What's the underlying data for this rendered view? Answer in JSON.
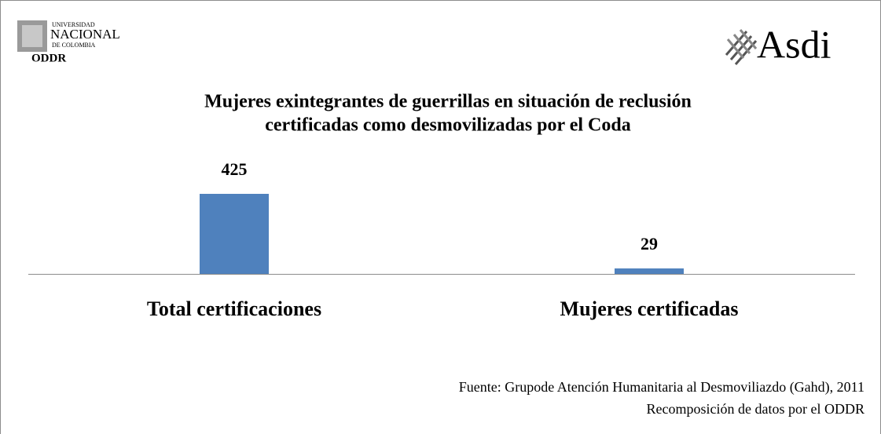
{
  "header": {
    "logo_left": [
      "UNIVERSIDAD",
      "NACIONAL",
      "DE COLOMBIA",
      "ODDR"
    ],
    "logo_right": "Asdi"
  },
  "chart_data": {
    "type": "bar",
    "title": [
      "Mujeres exintegrantes de guerrillas en situación de reclusión",
      "certificadas como desmovilizadas por el Coda"
    ],
    "categories": [
      "Total certificaciones",
      "Mujeres certificadas"
    ],
    "values": [
      425,
      29
    ],
    "color": "#4f81bd"
  },
  "source": [
    "Fuente: Grupode Atención Humanitaria al Desmoviliazdo (Gahd), 2011",
    "Recomposición de datos por el ODDR"
  ]
}
